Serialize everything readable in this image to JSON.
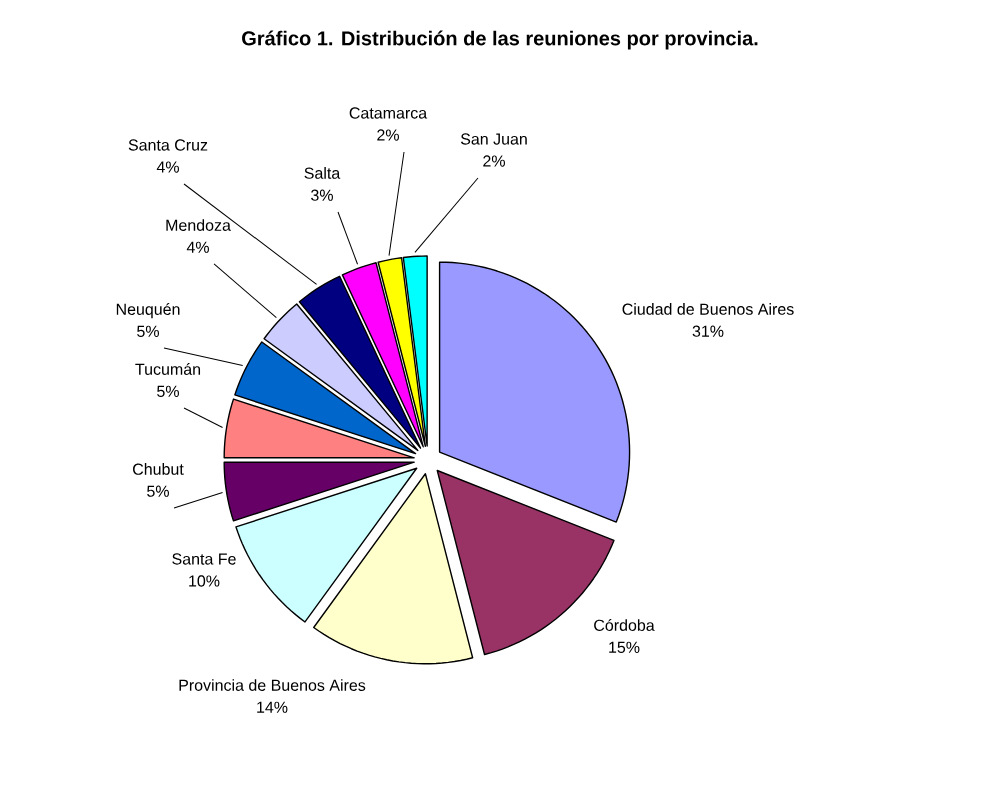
{
  "chart_data": {
    "type": "pie",
    "title": "Gráfico 1. Distribución de las reuniones por provincia.",
    "categories": [
      "Ciudad de Buenos Aires",
      "Córdoba",
      "Provincia de Buenos Aires",
      "Santa Fe",
      "Chubut",
      "Tucumán",
      "Neuquén",
      "Mendoza",
      "Santa Cruz",
      "Salta",
      "Catamarca",
      "San Juan"
    ],
    "values": [
      31,
      15,
      14,
      10,
      5,
      5,
      5,
      4,
      4,
      3,
      2,
      2
    ],
    "value_labels": [
      "31%",
      "15%",
      "14%",
      "10%",
      "5%",
      "5%",
      "5%",
      "4%",
      "4%",
      "3%",
      "2%",
      "2%"
    ],
    "colors": [
      "#9999ff",
      "#993366",
      "#ffffcc",
      "#ccffff",
      "#660066",
      "#ff8080",
      "#0066cc",
      "#ccccff",
      "#000080",
      "#ff00ff",
      "#ffff00",
      "#00ffff"
    ]
  }
}
